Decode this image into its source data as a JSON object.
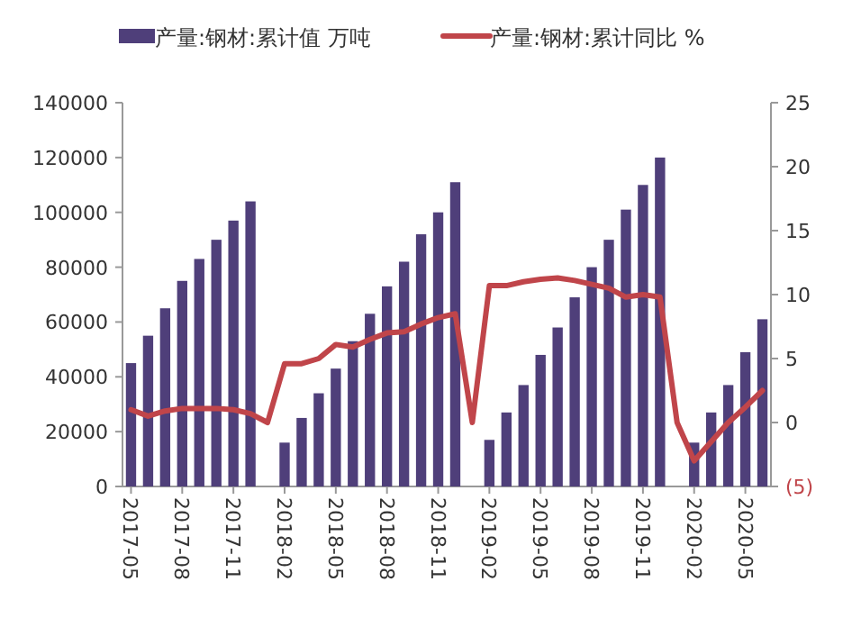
{
  "chart_data": {
    "type": "bar",
    "categories": [
      "2017-05",
      null,
      null,
      "2017-08",
      null,
      null,
      "2017-11",
      null,
      null,
      "2018-02",
      null,
      null,
      "2018-05",
      null,
      null,
      "2018-08",
      null,
      null,
      "2018-11",
      null,
      null,
      "2019-02",
      null,
      null,
      "2019-05",
      null,
      null,
      "2019-08",
      null,
      null,
      "2019-11",
      null,
      null,
      "2020-02",
      null,
      null,
      "2020-05",
      null
    ],
    "series": [
      {
        "name": "产量:钢材:累计值 万吨",
        "color": "#4f3f7a",
        "values": [
          45000,
          55000,
          65000,
          75000,
          83000,
          90000,
          97000,
          104000,
          null,
          16000,
          25000,
          34000,
          43000,
          53000,
          63000,
          73000,
          82000,
          92000,
          100000,
          111000,
          null,
          17000,
          27000,
          37000,
          48000,
          58000,
          69000,
          80000,
          90000,
          101000,
          110000,
          120000,
          null,
          16000,
          27000,
          37000,
          49000,
          61000
        ]
      },
      {
        "name": "产量:钢材:累计同比 %",
        "type": "line",
        "axis": "y2",
        "color": "#c0454a",
        "values": [
          1.0,
          0.5,
          0.9,
          1.1,
          1.1,
          1.1,
          1.0,
          0.7,
          0.0,
          4.6,
          4.6,
          5.0,
          6.1,
          5.9,
          6.5,
          7.0,
          7.1,
          7.7,
          8.2,
          8.5,
          0.0,
          10.7,
          10.7,
          11.0,
          11.2,
          11.3,
          11.1,
          10.8,
          10.5,
          9.8,
          10.0,
          9.8,
          0.0,
          -3.0,
          -1.5,
          0.0,
          1.2,
          2.5
        ]
      }
    ],
    "ylim": [
      0,
      140000
    ],
    "yticks": [
      0,
      20000,
      40000,
      60000,
      80000,
      100000,
      120000,
      140000
    ],
    "y2lim": [
      -5,
      25
    ],
    "y2ticks": [
      {
        "value": -5,
        "label": "(5)"
      },
      0,
      5,
      10,
      15,
      20,
      25
    ],
    "legend": "top",
    "grid": false
  }
}
